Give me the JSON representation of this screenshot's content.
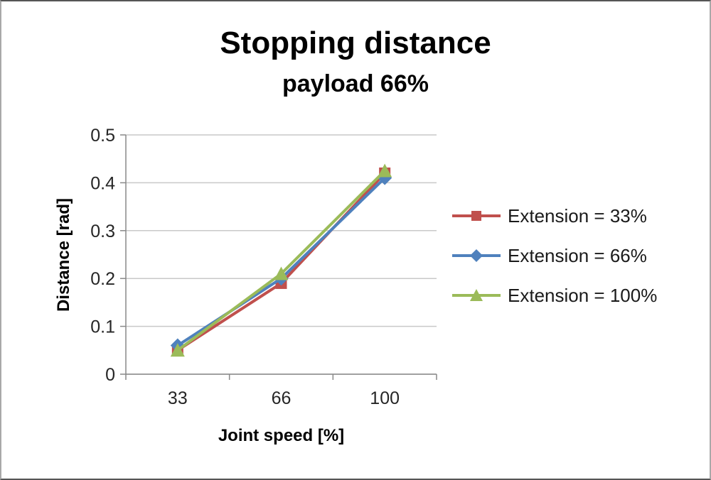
{
  "chart_data": {
    "type": "line",
    "title": "Stopping distance",
    "subtitle": "payload 66%",
    "xlabel": "Joint speed [%]",
    "ylabel": "Distance [rad]",
    "categories": [
      "33",
      "66",
      "100"
    ],
    "ylim": [
      0,
      0.5
    ],
    "yticks": [
      0,
      0.1,
      0.2,
      0.3,
      0.4,
      0.5
    ],
    "ytick_labels": [
      "0",
      "0.1",
      "0.2",
      "0.3",
      "0.4",
      "0.5"
    ],
    "grid": true,
    "legend_position": "right",
    "series": [
      {
        "name": "Extension = 33%",
        "color": "#C0504D",
        "marker": "square",
        "values": [
          0.05,
          0.19,
          0.42
        ]
      },
      {
        "name": "Extension = 66%",
        "color": "#4F81BD",
        "marker": "diamond",
        "values": [
          0.06,
          0.2,
          0.41
        ]
      },
      {
        "name": "Extension = 100%",
        "color": "#9BBB59",
        "marker": "triangle",
        "values": [
          0.05,
          0.21,
          0.425
        ]
      }
    ]
  }
}
